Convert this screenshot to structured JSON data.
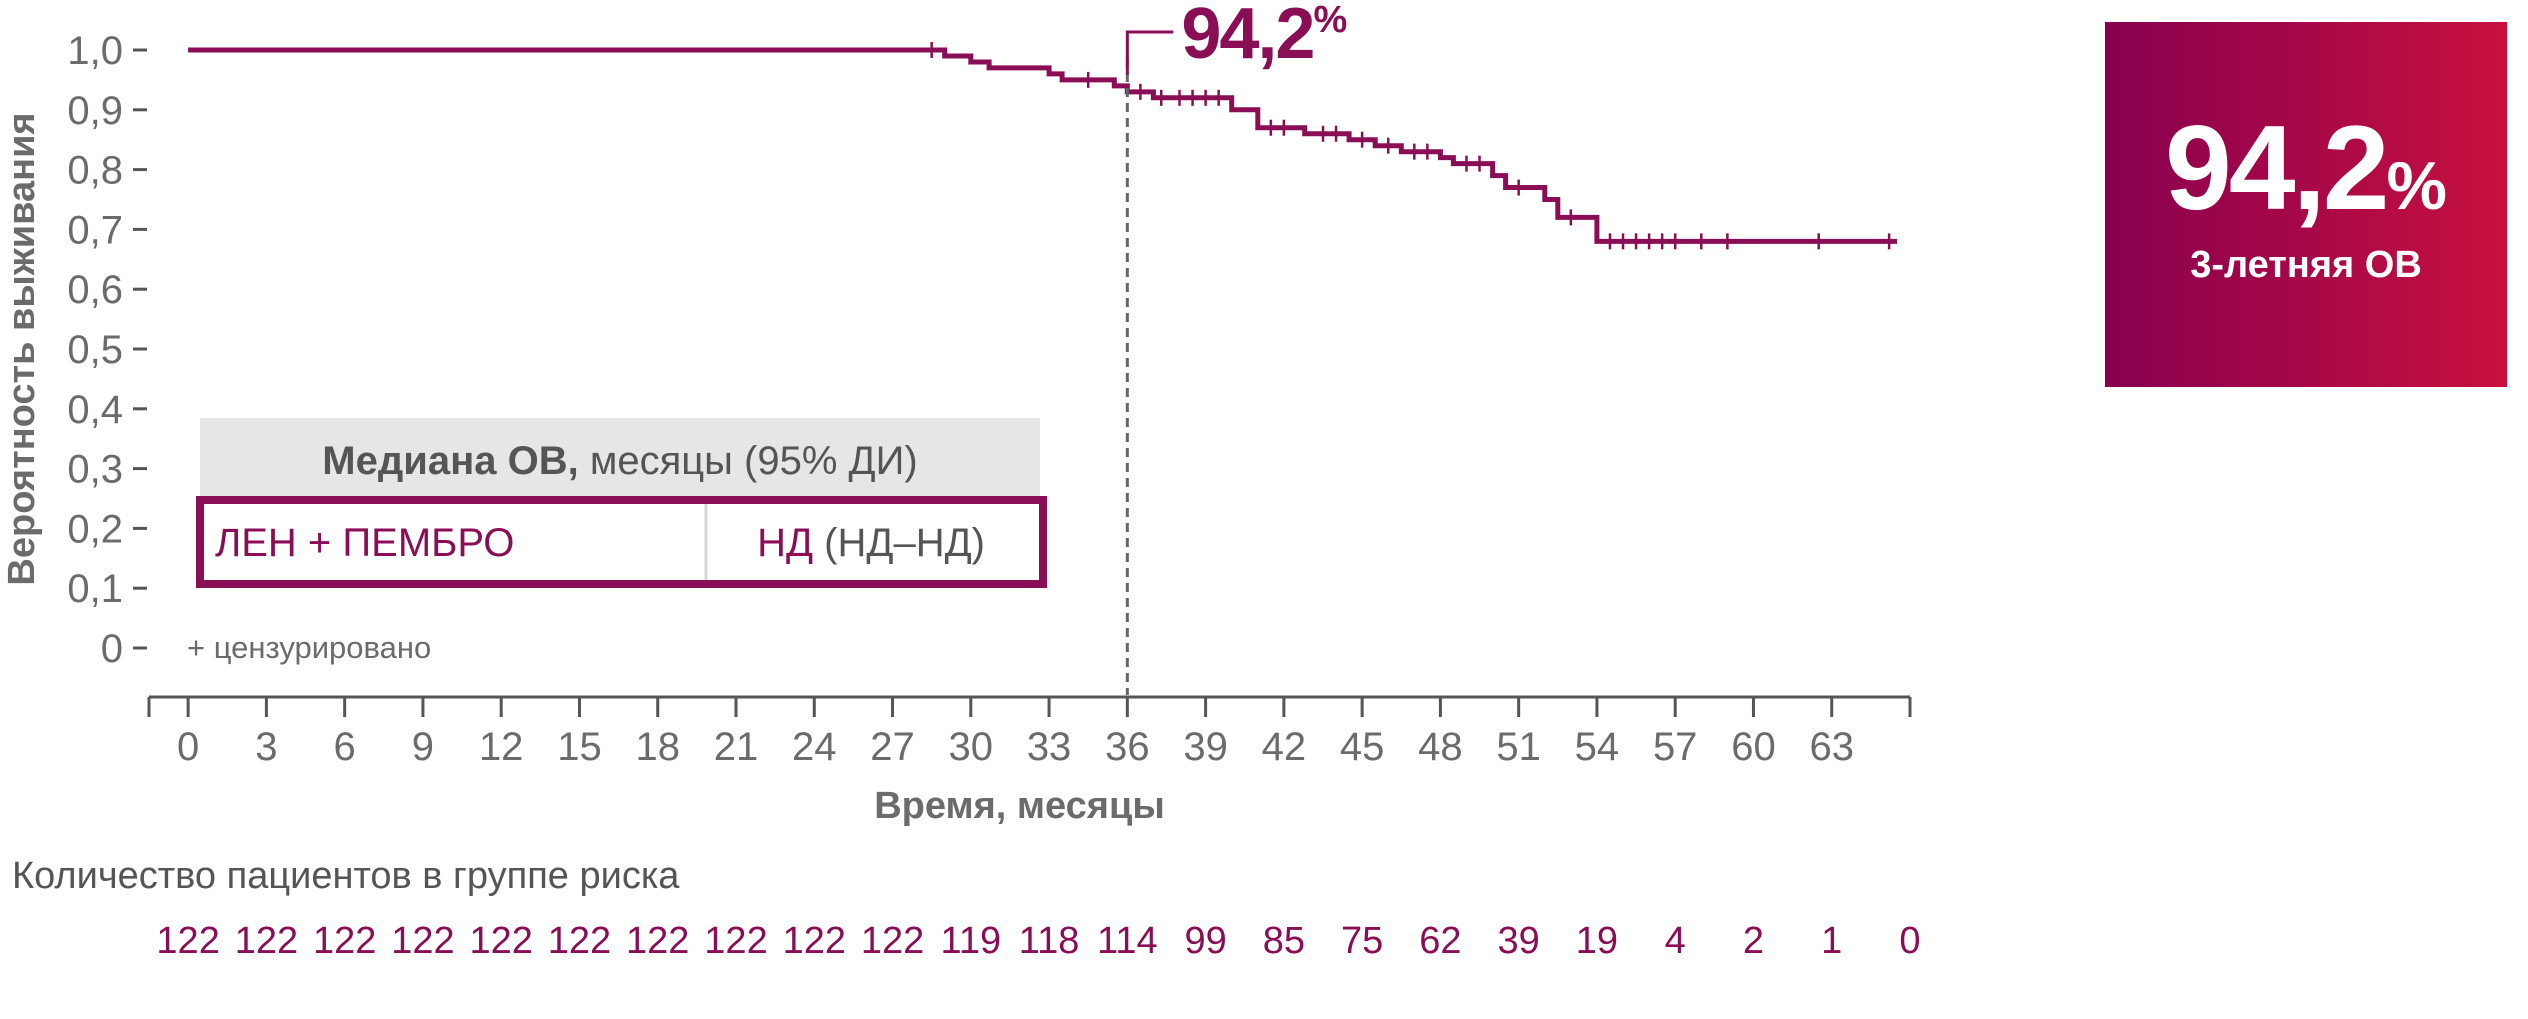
{
  "chart_data": {
    "type": "line",
    "ylabel": "Вероятность выживания",
    "xlabel": "Время, месяцы",
    "x_ticks": [
      "0",
      "3",
      "6",
      "9",
      "12",
      "15",
      "18",
      "21",
      "24",
      "27",
      "30",
      "33",
      "36",
      "39",
      "42",
      "45",
      "48",
      "51",
      "54",
      "57",
      "60",
      "63"
    ],
    "y_ticks": [
      "0",
      "0,1",
      "0,2",
      "0,3",
      "0,4",
      "0,5",
      "0,6",
      "0,7",
      "0,8",
      "0,9",
      "1,0"
    ],
    "xlim": [
      -1.5,
      66
    ],
    "ylim": [
      0,
      1.0
    ],
    "series": [
      {
        "name": "ЛЕН + ПЕМБРО",
        "color": "#8a0e55",
        "points": [
          [
            0,
            1.0
          ],
          [
            29,
            1.0
          ],
          [
            29,
            0.99
          ],
          [
            30,
            0.99
          ],
          [
            30,
            0.98
          ],
          [
            30.7,
            0.98
          ],
          [
            30.7,
            0.97
          ],
          [
            33,
            0.97
          ],
          [
            33,
            0.96
          ],
          [
            33.5,
            0.96
          ],
          [
            33.5,
            0.95
          ],
          [
            35.5,
            0.95
          ],
          [
            35.5,
            0.94
          ],
          [
            36,
            0.94
          ],
          [
            36,
            0.93
          ],
          [
            37,
            0.93
          ],
          [
            37,
            0.92
          ],
          [
            40,
            0.92
          ],
          [
            40,
            0.9
          ],
          [
            41,
            0.9
          ],
          [
            41,
            0.87
          ],
          [
            42.8,
            0.87
          ],
          [
            42.8,
            0.86
          ],
          [
            44.5,
            0.86
          ],
          [
            44.5,
            0.85
          ],
          [
            45.5,
            0.85
          ],
          [
            45.5,
            0.84
          ],
          [
            46.5,
            0.84
          ],
          [
            46.5,
            0.83
          ],
          [
            48,
            0.83
          ],
          [
            48,
            0.82
          ],
          [
            48.5,
            0.82
          ],
          [
            48.5,
            0.81
          ],
          [
            50,
            0.81
          ],
          [
            50,
            0.79
          ],
          [
            50.5,
            0.79
          ],
          [
            50.5,
            0.77
          ],
          [
            52,
            0.77
          ],
          [
            52,
            0.75
          ],
          [
            52.5,
            0.75
          ],
          [
            52.5,
            0.72
          ],
          [
            54,
            0.72
          ],
          [
            54,
            0.68
          ],
          [
            65.5,
            0.68
          ]
        ],
        "censored": [
          [
            28.5,
            1.0
          ],
          [
            34.5,
            0.95
          ],
          [
            36.5,
            0.93
          ],
          [
            37.3,
            0.92
          ],
          [
            38,
            0.92
          ],
          [
            38.5,
            0.92
          ],
          [
            39,
            0.92
          ],
          [
            39.5,
            0.92
          ],
          [
            41.5,
            0.87
          ],
          [
            42,
            0.87
          ],
          [
            43.5,
            0.86
          ],
          [
            44,
            0.86
          ],
          [
            45,
            0.85
          ],
          [
            46,
            0.84
          ],
          [
            47,
            0.83
          ],
          [
            47.5,
            0.83
          ],
          [
            49,
            0.81
          ],
          [
            49.5,
            0.81
          ],
          [
            51,
            0.77
          ],
          [
            53,
            0.72
          ],
          [
            54.5,
            0.68
          ],
          [
            55,
            0.68
          ],
          [
            55.5,
            0.68
          ],
          [
            56,
            0.68
          ],
          [
            56.5,
            0.68
          ],
          [
            57,
            0.68
          ],
          [
            58,
            0.68
          ],
          [
            59,
            0.68
          ],
          [
            62.5,
            0.68
          ],
          [
            65.2,
            0.68
          ]
        ]
      }
    ],
    "annotation": {
      "x": 36,
      "y": 0.942,
      "value": "94,2",
      "unit": "%"
    },
    "legend": {
      "header_bold": "Медиана ОВ,",
      "header_rest": " месяцы (95% ДИ)",
      "rows": [
        {
          "name": "ЛЕН + ПЕМБРО",
          "median_bold": "НД",
          "median_rest": " (НД–НД)"
        }
      ],
      "censored_note": "+ цензурировано"
    },
    "risk_table": {
      "title": "Количество пациентов в группе риска",
      "values": [
        "122",
        "122",
        "122",
        "122",
        "122",
        "122",
        "122",
        "122",
        "122",
        "122",
        "119",
        "118",
        "114",
        "99",
        "85",
        "75",
        "62",
        "39",
        "19",
        "4",
        "2",
        "1",
        "0"
      ]
    }
  },
  "badge": {
    "value": "94,2",
    "unit": "%",
    "label": "3-летняя ОВ"
  },
  "colors": {
    "accent": "#8a0e55",
    "gradient_start": "#87004f",
    "gradient_end": "#c8103f",
    "axis": "#555555",
    "text": "#6b6b6b",
    "legend_header_bg": "#e6e6e6"
  }
}
